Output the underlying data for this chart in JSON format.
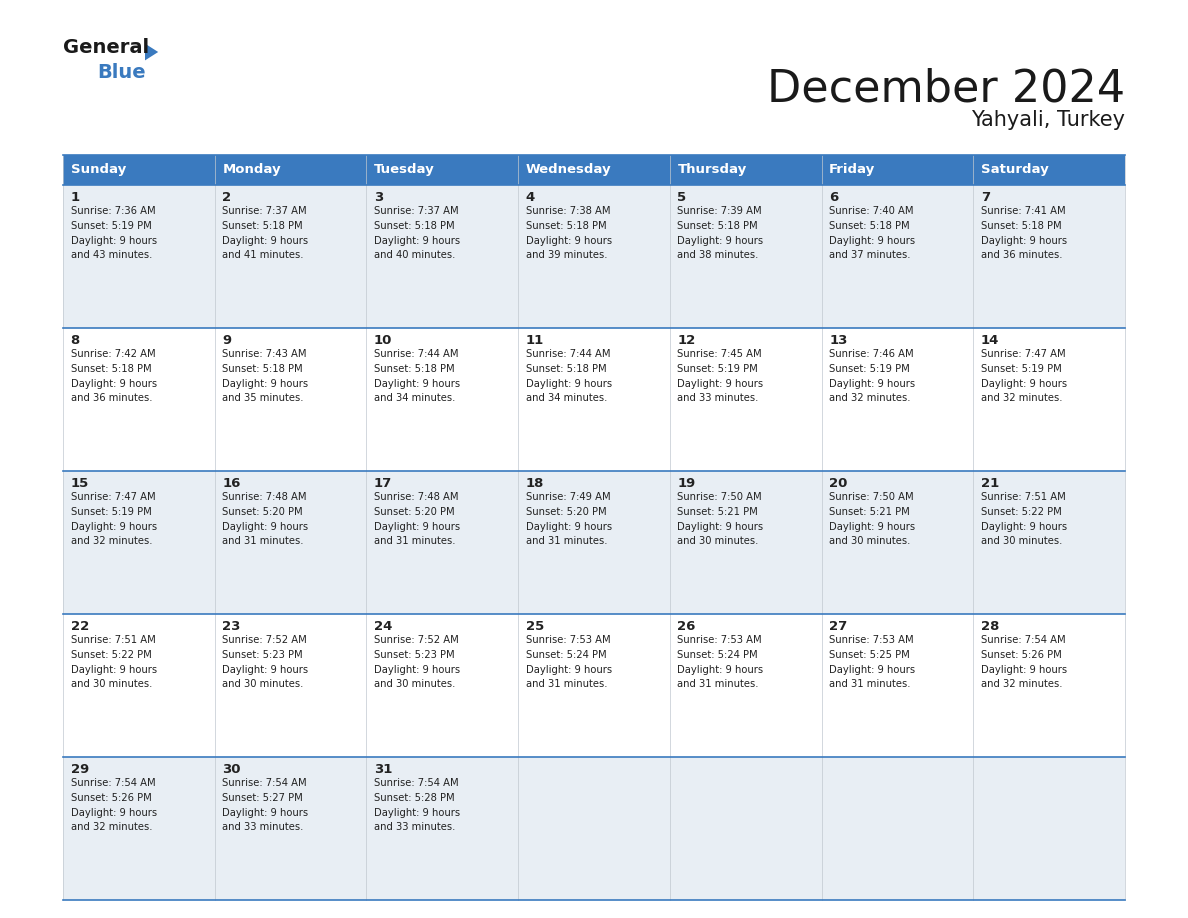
{
  "title": "December 2024",
  "subtitle": "Yahyali, Turkey",
  "header_color": "#3a7abf",
  "header_text_color": "#ffffff",
  "day_names": [
    "Sunday",
    "Monday",
    "Tuesday",
    "Wednesday",
    "Thursday",
    "Friday",
    "Saturday"
  ],
  "cell_bg_row0": "#e8eef4",
  "cell_bg_row1": "#ffffff",
  "cell_bg_row2": "#e8eef4",
  "cell_bg_row3": "#ffffff",
  "cell_bg_row4": "#e8eef4",
  "border_color": "#3a7abf",
  "text_color": "#222222",
  "days": [
    {
      "day": 1,
      "col": 0,
      "row": 0,
      "sunrise": "7:36 AM",
      "sunset": "5:19 PM",
      "daylight_min": "43 minutes."
    },
    {
      "day": 2,
      "col": 1,
      "row": 0,
      "sunrise": "7:37 AM",
      "sunset": "5:18 PM",
      "daylight_min": "41 minutes."
    },
    {
      "day": 3,
      "col": 2,
      "row": 0,
      "sunrise": "7:37 AM",
      "sunset": "5:18 PM",
      "daylight_min": "40 minutes."
    },
    {
      "day": 4,
      "col": 3,
      "row": 0,
      "sunrise": "7:38 AM",
      "sunset": "5:18 PM",
      "daylight_min": "39 minutes."
    },
    {
      "day": 5,
      "col": 4,
      "row": 0,
      "sunrise": "7:39 AM",
      "sunset": "5:18 PM",
      "daylight_min": "38 minutes."
    },
    {
      "day": 6,
      "col": 5,
      "row": 0,
      "sunrise": "7:40 AM",
      "sunset": "5:18 PM",
      "daylight_min": "37 minutes."
    },
    {
      "day": 7,
      "col": 6,
      "row": 0,
      "sunrise": "7:41 AM",
      "sunset": "5:18 PM",
      "daylight_min": "36 minutes."
    },
    {
      "day": 8,
      "col": 0,
      "row": 1,
      "sunrise": "7:42 AM",
      "sunset": "5:18 PM",
      "daylight_min": "36 minutes."
    },
    {
      "day": 9,
      "col": 1,
      "row": 1,
      "sunrise": "7:43 AM",
      "sunset": "5:18 PM",
      "daylight_min": "35 minutes."
    },
    {
      "day": 10,
      "col": 2,
      "row": 1,
      "sunrise": "7:44 AM",
      "sunset": "5:18 PM",
      "daylight_min": "34 minutes."
    },
    {
      "day": 11,
      "col": 3,
      "row": 1,
      "sunrise": "7:44 AM",
      "sunset": "5:18 PM",
      "daylight_min": "34 minutes."
    },
    {
      "day": 12,
      "col": 4,
      "row": 1,
      "sunrise": "7:45 AM",
      "sunset": "5:19 PM",
      "daylight_min": "33 minutes."
    },
    {
      "day": 13,
      "col": 5,
      "row": 1,
      "sunrise": "7:46 AM",
      "sunset": "5:19 PM",
      "daylight_min": "32 minutes."
    },
    {
      "day": 14,
      "col": 6,
      "row": 1,
      "sunrise": "7:47 AM",
      "sunset": "5:19 PM",
      "daylight_min": "32 minutes."
    },
    {
      "day": 15,
      "col": 0,
      "row": 2,
      "sunrise": "7:47 AM",
      "sunset": "5:19 PM",
      "daylight_min": "32 minutes."
    },
    {
      "day": 16,
      "col": 1,
      "row": 2,
      "sunrise": "7:48 AM",
      "sunset": "5:20 PM",
      "daylight_min": "31 minutes."
    },
    {
      "day": 17,
      "col": 2,
      "row": 2,
      "sunrise": "7:48 AM",
      "sunset": "5:20 PM",
      "daylight_min": "31 minutes."
    },
    {
      "day": 18,
      "col": 3,
      "row": 2,
      "sunrise": "7:49 AM",
      "sunset": "5:20 PM",
      "daylight_min": "31 minutes."
    },
    {
      "day": 19,
      "col": 4,
      "row": 2,
      "sunrise": "7:50 AM",
      "sunset": "5:21 PM",
      "daylight_min": "30 minutes."
    },
    {
      "day": 20,
      "col": 5,
      "row": 2,
      "sunrise": "7:50 AM",
      "sunset": "5:21 PM",
      "daylight_min": "30 minutes."
    },
    {
      "day": 21,
      "col": 6,
      "row": 2,
      "sunrise": "7:51 AM",
      "sunset": "5:22 PM",
      "daylight_min": "30 minutes."
    },
    {
      "day": 22,
      "col": 0,
      "row": 3,
      "sunrise": "7:51 AM",
      "sunset": "5:22 PM",
      "daylight_min": "30 minutes."
    },
    {
      "day": 23,
      "col": 1,
      "row": 3,
      "sunrise": "7:52 AM",
      "sunset": "5:23 PM",
      "daylight_min": "30 minutes."
    },
    {
      "day": 24,
      "col": 2,
      "row": 3,
      "sunrise": "7:52 AM",
      "sunset": "5:23 PM",
      "daylight_min": "30 minutes."
    },
    {
      "day": 25,
      "col": 3,
      "row": 3,
      "sunrise": "7:53 AM",
      "sunset": "5:24 PM",
      "daylight_min": "31 minutes."
    },
    {
      "day": 26,
      "col": 4,
      "row": 3,
      "sunrise": "7:53 AM",
      "sunset": "5:24 PM",
      "daylight_min": "31 minutes."
    },
    {
      "day": 27,
      "col": 5,
      "row": 3,
      "sunrise": "7:53 AM",
      "sunset": "5:25 PM",
      "daylight_min": "31 minutes."
    },
    {
      "day": 28,
      "col": 6,
      "row": 3,
      "sunrise": "7:54 AM",
      "sunset": "5:26 PM",
      "daylight_min": "32 minutes."
    },
    {
      "day": 29,
      "col": 0,
      "row": 4,
      "sunrise": "7:54 AM",
      "sunset": "5:26 PM",
      "daylight_min": "32 minutes."
    },
    {
      "day": 30,
      "col": 1,
      "row": 4,
      "sunrise": "7:54 AM",
      "sunset": "5:27 PM",
      "daylight_min": "33 minutes."
    },
    {
      "day": 31,
      "col": 2,
      "row": 4,
      "sunrise": "7:54 AM",
      "sunset": "5:28 PM",
      "daylight_min": "33 minutes."
    }
  ]
}
